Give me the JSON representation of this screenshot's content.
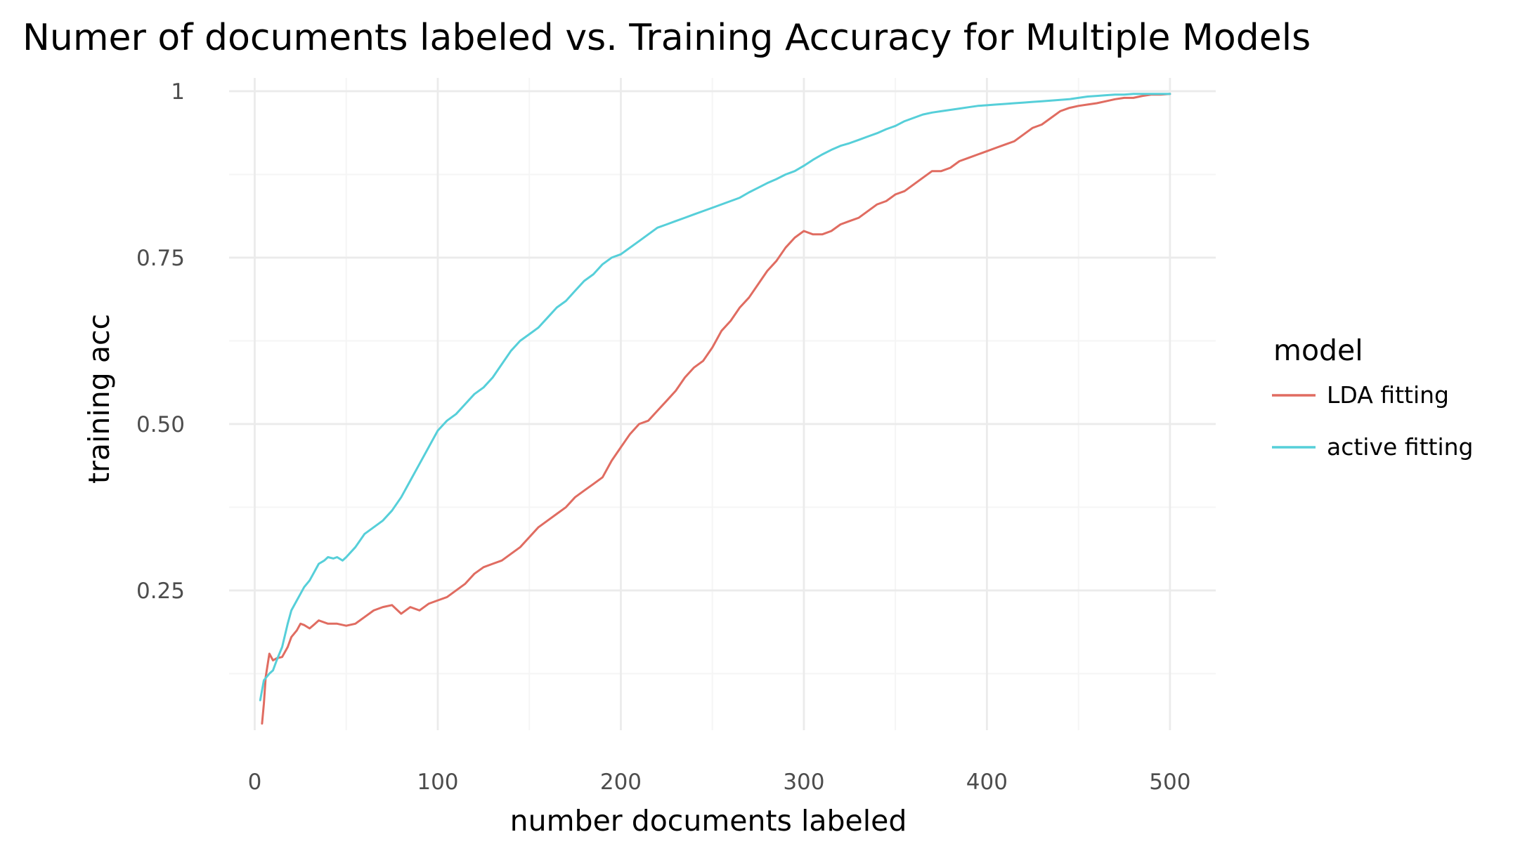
{
  "chart_data": {
    "type": "line",
    "title": "Numer of documents labeled vs. Training Accuracy for Multiple Models",
    "xlabel": "number documents labeled",
    "ylabel": "training acc",
    "xlim": [
      -14,
      525
    ],
    "ylim": [
      0.04,
      1.02
    ],
    "x_ticks": [
      0,
      100,
      200,
      300,
      400,
      500
    ],
    "x_tick_labels": [
      "0",
      "100",
      "200",
      "300",
      "400",
      "500"
    ],
    "y_ticks": [
      0.25,
      0.5,
      0.75,
      1
    ],
    "y_tick_labels": [
      "0.25",
      "0.50",
      "0.75",
      "1"
    ],
    "grid": true,
    "legend": {
      "title": "model",
      "position": "right",
      "entries": [
        "LDA fitting",
        "active fitting"
      ]
    },
    "series": [
      {
        "name": "LDA fitting",
        "color": "#E06C61",
        "x": [
          4,
          5,
          6,
          8,
          10,
          12,
          15,
          18,
          20,
          23,
          25,
          27,
          30,
          33,
          35,
          40,
          45,
          50,
          55,
          60,
          65,
          70,
          75,
          80,
          85,
          90,
          95,
          100,
          105,
          110,
          115,
          120,
          125,
          130,
          135,
          140,
          145,
          150,
          155,
          160,
          165,
          170,
          175,
          180,
          185,
          190,
          195,
          200,
          205,
          210,
          215,
          220,
          225,
          230,
          235,
          240,
          245,
          250,
          255,
          260,
          265,
          270,
          275,
          280,
          285,
          290,
          295,
          300,
          305,
          310,
          315,
          320,
          325,
          330,
          335,
          340,
          345,
          350,
          355,
          360,
          365,
          370,
          375,
          380,
          385,
          390,
          395,
          400,
          405,
          410,
          415,
          420,
          425,
          430,
          435,
          440,
          445,
          450,
          455,
          460,
          465,
          470,
          475,
          480,
          485,
          490,
          495,
          500
        ],
        "values": [
          0.05,
          0.08,
          0.12,
          0.155,
          0.145,
          0.148,
          0.15,
          0.165,
          0.18,
          0.19,
          0.2,
          0.198,
          0.193,
          0.2,
          0.205,
          0.2,
          0.2,
          0.197,
          0.2,
          0.21,
          0.22,
          0.225,
          0.228,
          0.215,
          0.225,
          0.22,
          0.23,
          0.235,
          0.24,
          0.25,
          0.26,
          0.275,
          0.285,
          0.29,
          0.295,
          0.305,
          0.315,
          0.33,
          0.345,
          0.355,
          0.365,
          0.375,
          0.39,
          0.4,
          0.41,
          0.42,
          0.445,
          0.465,
          0.485,
          0.5,
          0.505,
          0.52,
          0.535,
          0.55,
          0.57,
          0.585,
          0.595,
          0.615,
          0.64,
          0.655,
          0.675,
          0.69,
          0.71,
          0.73,
          0.745,
          0.765,
          0.78,
          0.79,
          0.785,
          0.785,
          0.79,
          0.8,
          0.805,
          0.81,
          0.82,
          0.83,
          0.835,
          0.845,
          0.85,
          0.86,
          0.87,
          0.88,
          0.88,
          0.885,
          0.895,
          0.9,
          0.905,
          0.91,
          0.915,
          0.92,
          0.925,
          0.935,
          0.945,
          0.95,
          0.96,
          0.97,
          0.975,
          0.978,
          0.98,
          0.982,
          0.985,
          0.988,
          0.99,
          0.99,
          0.993,
          0.995,
          0.995,
          0.996
        ]
      },
      {
        "name": "active fitting",
        "color": "#56CFD9",
        "x": [
          3,
          5,
          8,
          10,
          12,
          15,
          18,
          20,
          23,
          25,
          27,
          30,
          33,
          35,
          38,
          40,
          43,
          45,
          48,
          50,
          55,
          60,
          65,
          70,
          75,
          80,
          85,
          90,
          95,
          100,
          105,
          110,
          115,
          120,
          125,
          130,
          135,
          140,
          145,
          150,
          155,
          160,
          165,
          170,
          175,
          180,
          185,
          190,
          195,
          200,
          205,
          210,
          215,
          220,
          225,
          230,
          235,
          240,
          245,
          250,
          255,
          260,
          265,
          270,
          275,
          280,
          285,
          290,
          295,
          300,
          305,
          310,
          315,
          320,
          325,
          330,
          335,
          340,
          345,
          350,
          355,
          360,
          365,
          370,
          375,
          380,
          385,
          390,
          395,
          400,
          405,
          410,
          415,
          420,
          425,
          430,
          435,
          440,
          445,
          450,
          455,
          460,
          465,
          470,
          475,
          480,
          485,
          490,
          495,
          500
        ],
        "values": [
          0.085,
          0.115,
          0.125,
          0.13,
          0.145,
          0.165,
          0.2,
          0.22,
          0.235,
          0.245,
          0.255,
          0.265,
          0.28,
          0.29,
          0.295,
          0.3,
          0.298,
          0.3,
          0.295,
          0.3,
          0.315,
          0.335,
          0.345,
          0.355,
          0.37,
          0.39,
          0.415,
          0.44,
          0.465,
          0.49,
          0.505,
          0.515,
          0.53,
          0.545,
          0.555,
          0.57,
          0.59,
          0.61,
          0.625,
          0.635,
          0.645,
          0.66,
          0.675,
          0.685,
          0.7,
          0.715,
          0.725,
          0.74,
          0.75,
          0.755,
          0.765,
          0.775,
          0.785,
          0.795,
          0.8,
          0.805,
          0.81,
          0.815,
          0.82,
          0.825,
          0.83,
          0.835,
          0.84,
          0.848,
          0.855,
          0.862,
          0.868,
          0.875,
          0.88,
          0.888,
          0.897,
          0.905,
          0.912,
          0.918,
          0.922,
          0.927,
          0.932,
          0.937,
          0.943,
          0.948,
          0.955,
          0.96,
          0.965,
          0.968,
          0.97,
          0.972,
          0.974,
          0.976,
          0.978,
          0.979,
          0.98,
          0.981,
          0.982,
          0.983,
          0.984,
          0.985,
          0.986,
          0.987,
          0.988,
          0.99,
          0.992,
          0.993,
          0.994,
          0.995,
          0.995,
          0.996,
          0.996,
          0.996,
          0.996,
          0.996
        ]
      }
    ]
  }
}
